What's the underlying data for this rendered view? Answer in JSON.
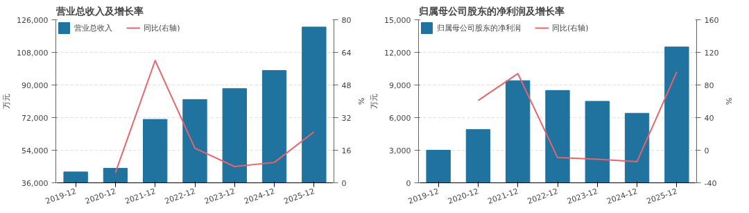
{
  "chart_data": [
    {
      "type": "bar",
      "title": "营业总收入及增长率",
      "ylabel": "万元",
      "y2label": "%",
      "categories": [
        "2019-12",
        "2020-12",
        "2021-12",
        "2022-12",
        "2023-12",
        "2024-12",
        "2025-12"
      ],
      "series": [
        {
          "name": "营业总收入",
          "color": "#21739f",
          "values": [
            42000,
            44000,
            71000,
            82000,
            88000,
            98000,
            122000
          ]
        },
        {
          "name": "同比(右轴)",
          "type": "line",
          "axis": "y2",
          "color": "#e8646a",
          "values": [
            null,
            5,
            60,
            17,
            8,
            10,
            25
          ]
        }
      ],
      "ylim": [
        36000,
        126000
      ],
      "yticks": [
        {
          "value": 36000,
          "label": "36,000"
        },
        {
          "value": 54000,
          "label": "54,000"
        },
        {
          "value": 72000,
          "label": "72,000"
        },
        {
          "value": 90000,
          "label": "90,000"
        },
        {
          "value": 108000,
          "label": "108,000"
        },
        {
          "value": 126000,
          "label": "126,000"
        }
      ],
      "y2lim": [
        0,
        80
      ],
      "y2ticks": [
        0,
        16,
        32,
        48,
        64,
        80
      ],
      "grid": "y",
      "legend": "top left",
      "marker": "none"
    },
    {
      "type": "bar",
      "title": "归属母公司股东的净利润及增长率",
      "ylabel": "万元",
      "y2label": "%",
      "categories": [
        "2019-12",
        "2020-12",
        "2021-12",
        "2022-12",
        "2023-12",
        "2024-12",
        "2025-12"
      ],
      "series": [
        {
          "name": "归属母公司股东的净利润",
          "color": "#21739f",
          "values": [
            3000,
            4900,
            9400,
            8500,
            7500,
            6400,
            12500
          ]
        },
        {
          "name": "同比(右轴)",
          "type": "line",
          "axis": "y2",
          "color": "#e8646a",
          "values": [
            null,
            61,
            94,
            -9,
            -11,
            -14,
            96
          ]
        }
      ],
      "ylim": [
        0,
        15000
      ],
      "yticks": [
        0,
        {
          "value": 3000,
          "label": "3,000"
        },
        {
          "value": 6000,
          "label": "6,000"
        },
        {
          "value": 9000,
          "label": "9,000"
        },
        {
          "value": 12000,
          "label": "12,000"
        },
        {
          "value": 15000,
          "label": "15,000"
        }
      ],
      "y2lim": [
        -40,
        160
      ],
      "y2ticks": [
        -40,
        0,
        40,
        80,
        120,
        160
      ],
      "grid": "y",
      "legend": "top left",
      "marker": "none"
    }
  ]
}
